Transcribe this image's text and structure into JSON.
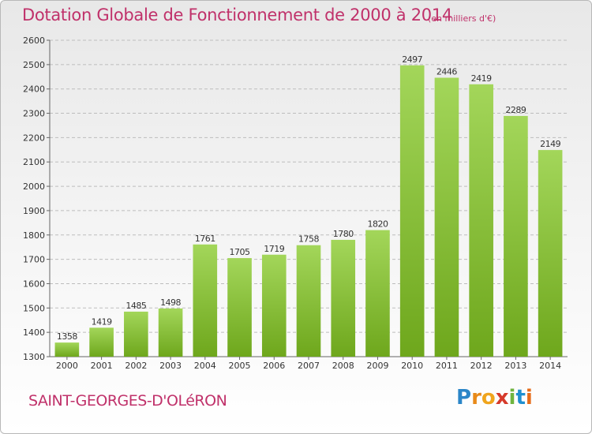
{
  "title": "Dotation Globale de Fonctionnement de 2000 à 2014",
  "subtitle": "(en milliers d'€)",
  "place": "SAINT-GEORGES-D'OLéRON",
  "logo": {
    "letters": [
      "P",
      "r",
      "o",
      "x",
      "i",
      "t",
      "i"
    ],
    "colors": [
      "#2b86c8",
      "#e88a1a",
      "#f0a51d",
      "#d63a2b",
      "#6fb43f",
      "#1f8fd0",
      "#e66c1a"
    ]
  },
  "colors": {
    "bar_light": "#a3d65a",
    "bar_dark": "#6ea71c",
    "text": "#c0316a",
    "grid": "#bdbdbd"
  },
  "chart_data": {
    "type": "bar",
    "categories": [
      "2000",
      "2001",
      "2002",
      "2003",
      "2004",
      "2005",
      "2006",
      "2007",
      "2008",
      "2009",
      "2010",
      "2011",
      "2012",
      "2013",
      "2014"
    ],
    "values": [
      1358,
      1419,
      1485,
      1498,
      1761,
      1705,
      1719,
      1758,
      1780,
      1820,
      2497,
      2446,
      2419,
      2289,
      2149
    ],
    "yticks": [
      1300,
      1400,
      1500,
      1600,
      1700,
      1800,
      1900,
      2000,
      2100,
      2200,
      2300,
      2400,
      2500,
      2600
    ],
    "ylim": [
      1300,
      2600
    ],
    "grid": true,
    "data_labels": true
  }
}
